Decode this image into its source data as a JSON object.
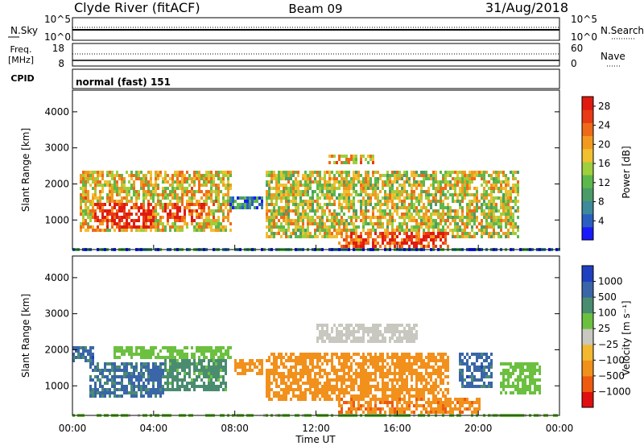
{
  "header": {
    "station": "Clyde River (fitACF)",
    "beam": "Beam 09",
    "date": "31/Aug/2018"
  },
  "status_panels": {
    "nsky_label": "N.Sky",
    "nsky_ticks": [
      "10^5",
      "10^0"
    ],
    "nsearch_label": "N.Search",
    "nsearch_ticks": [
      "10^5",
      "10^0"
    ],
    "freq_label": "Freq.",
    "freq_unit": "[MHz]",
    "freq_ticks": [
      "18",
      "8"
    ],
    "nave_label": "Nave",
    "nave_ticks": [
      "60",
      "0"
    ],
    "cpid_label": "CPID",
    "cpid_text": "normal (fast) 151"
  },
  "chart_data": [
    {
      "type": "heatmap",
      "title": "",
      "ylabel": "Slant Range [km]",
      "xlabel": "",
      "xlim": [
        0,
        24
      ],
      "ylim": [
        180,
        4600
      ],
      "yticks": [
        "1000",
        "2000",
        "3000",
        "4000"
      ],
      "colorbar": {
        "label": "Power [dB]",
        "ticks": [
          "4",
          "8",
          "12",
          "16",
          "20",
          "24",
          "28"
        ],
        "range": [
          0,
          30
        ],
        "colors": [
          "#1a1aff",
          "#2b5fbf",
          "#3c8a9a",
          "#4a9b68",
          "#5cb84a",
          "#9fcf3c",
          "#f0c030",
          "#f29a20",
          "#ef6a18",
          "#e83a14",
          "#e01a10"
        ]
      },
      "echo_regions": [
        {
          "t": [
            0.3,
            7.8
          ],
          "r": [
            700,
            2450
          ],
          "level": 0.6
        },
        {
          "t": [
            1.0,
            4.0
          ],
          "r": [
            800,
            1500
          ],
          "level": 0.9
        },
        {
          "t": [
            4.5,
            6.5
          ],
          "r": [
            1000,
            1500
          ],
          "level": 0.85
        },
        {
          "t": [
            7.7,
            9.3
          ],
          "r": [
            1300,
            1700
          ],
          "level": 0.25
        },
        {
          "t": [
            9.5,
            22
          ],
          "r": [
            500,
            2400
          ],
          "level": 0.55
        },
        {
          "t": [
            13,
            18.5
          ],
          "r": [
            300,
            700
          ],
          "level": 0.85
        },
        {
          "t": [
            12.5,
            14.8
          ],
          "r": [
            2550,
            2850
          ],
          "level": 0.6
        },
        {
          "t": [
            0,
            24
          ],
          "r": [
            180,
            300
          ],
          "level": 0.2
        }
      ]
    },
    {
      "type": "heatmap",
      "title": "",
      "ylabel": "Slant Range [km]",
      "xlabel": "Time UT",
      "xlim": [
        0,
        24
      ],
      "ylim": [
        180,
        4600
      ],
      "xticks": [
        "00:00",
        "04:00",
        "08:00",
        "12:00",
        "16:00",
        "20:00",
        "00:00"
      ],
      "yticks": [
        "1000",
        "2000",
        "3000",
        "4000"
      ],
      "colorbar": {
        "label": "Velocity [m s⁻¹]",
        "ticks": [
          "1000",
          "500",
          "100",
          "25",
          "−25",
          "−100",
          "−500",
          "−1000"
        ],
        "colors": [
          "#2040c0",
          "#3a66a8",
          "#4a8c70",
          "#6cc040",
          "#c8c8c0",
          "#f2b830",
          "#f2901c",
          "#ee5a10",
          "#e01010"
        ]
      },
      "echo_regions": [
        {
          "t": [
            0.8,
            4.5
          ],
          "r": [
            750,
            1700
          ],
          "value": 600
        },
        {
          "t": [
            4.5,
            7.5
          ],
          "r": [
            900,
            1800
          ],
          "value": 150
        },
        {
          "t": [
            2.0,
            7.8
          ],
          "r": [
            1800,
            2100
          ],
          "value": 60
        },
        {
          "t": [
            0,
            1.0
          ],
          "r": [
            1700,
            2100
          ],
          "value": 700
        },
        {
          "t": [
            7.9,
            9.4
          ],
          "r": [
            1350,
            1750
          ],
          "value": -250
        },
        {
          "t": [
            9.5,
            18.5
          ],
          "r": [
            600,
            2000
          ],
          "value": -300
        },
        {
          "t": [
            12,
            17
          ],
          "r": [
            2200,
            2800
          ],
          "value": 0
        },
        {
          "t": [
            13,
            20
          ],
          "r": [
            250,
            750
          ],
          "value": -400
        },
        {
          "t": [
            19,
            20.6
          ],
          "r": [
            1000,
            2000
          ],
          "value": 700
        },
        {
          "t": [
            21,
            23
          ],
          "r": [
            800,
            1700
          ],
          "value": 60
        },
        {
          "t": [
            0,
            24
          ],
          "r": [
            180,
            280
          ],
          "value": 40
        }
      ]
    }
  ]
}
